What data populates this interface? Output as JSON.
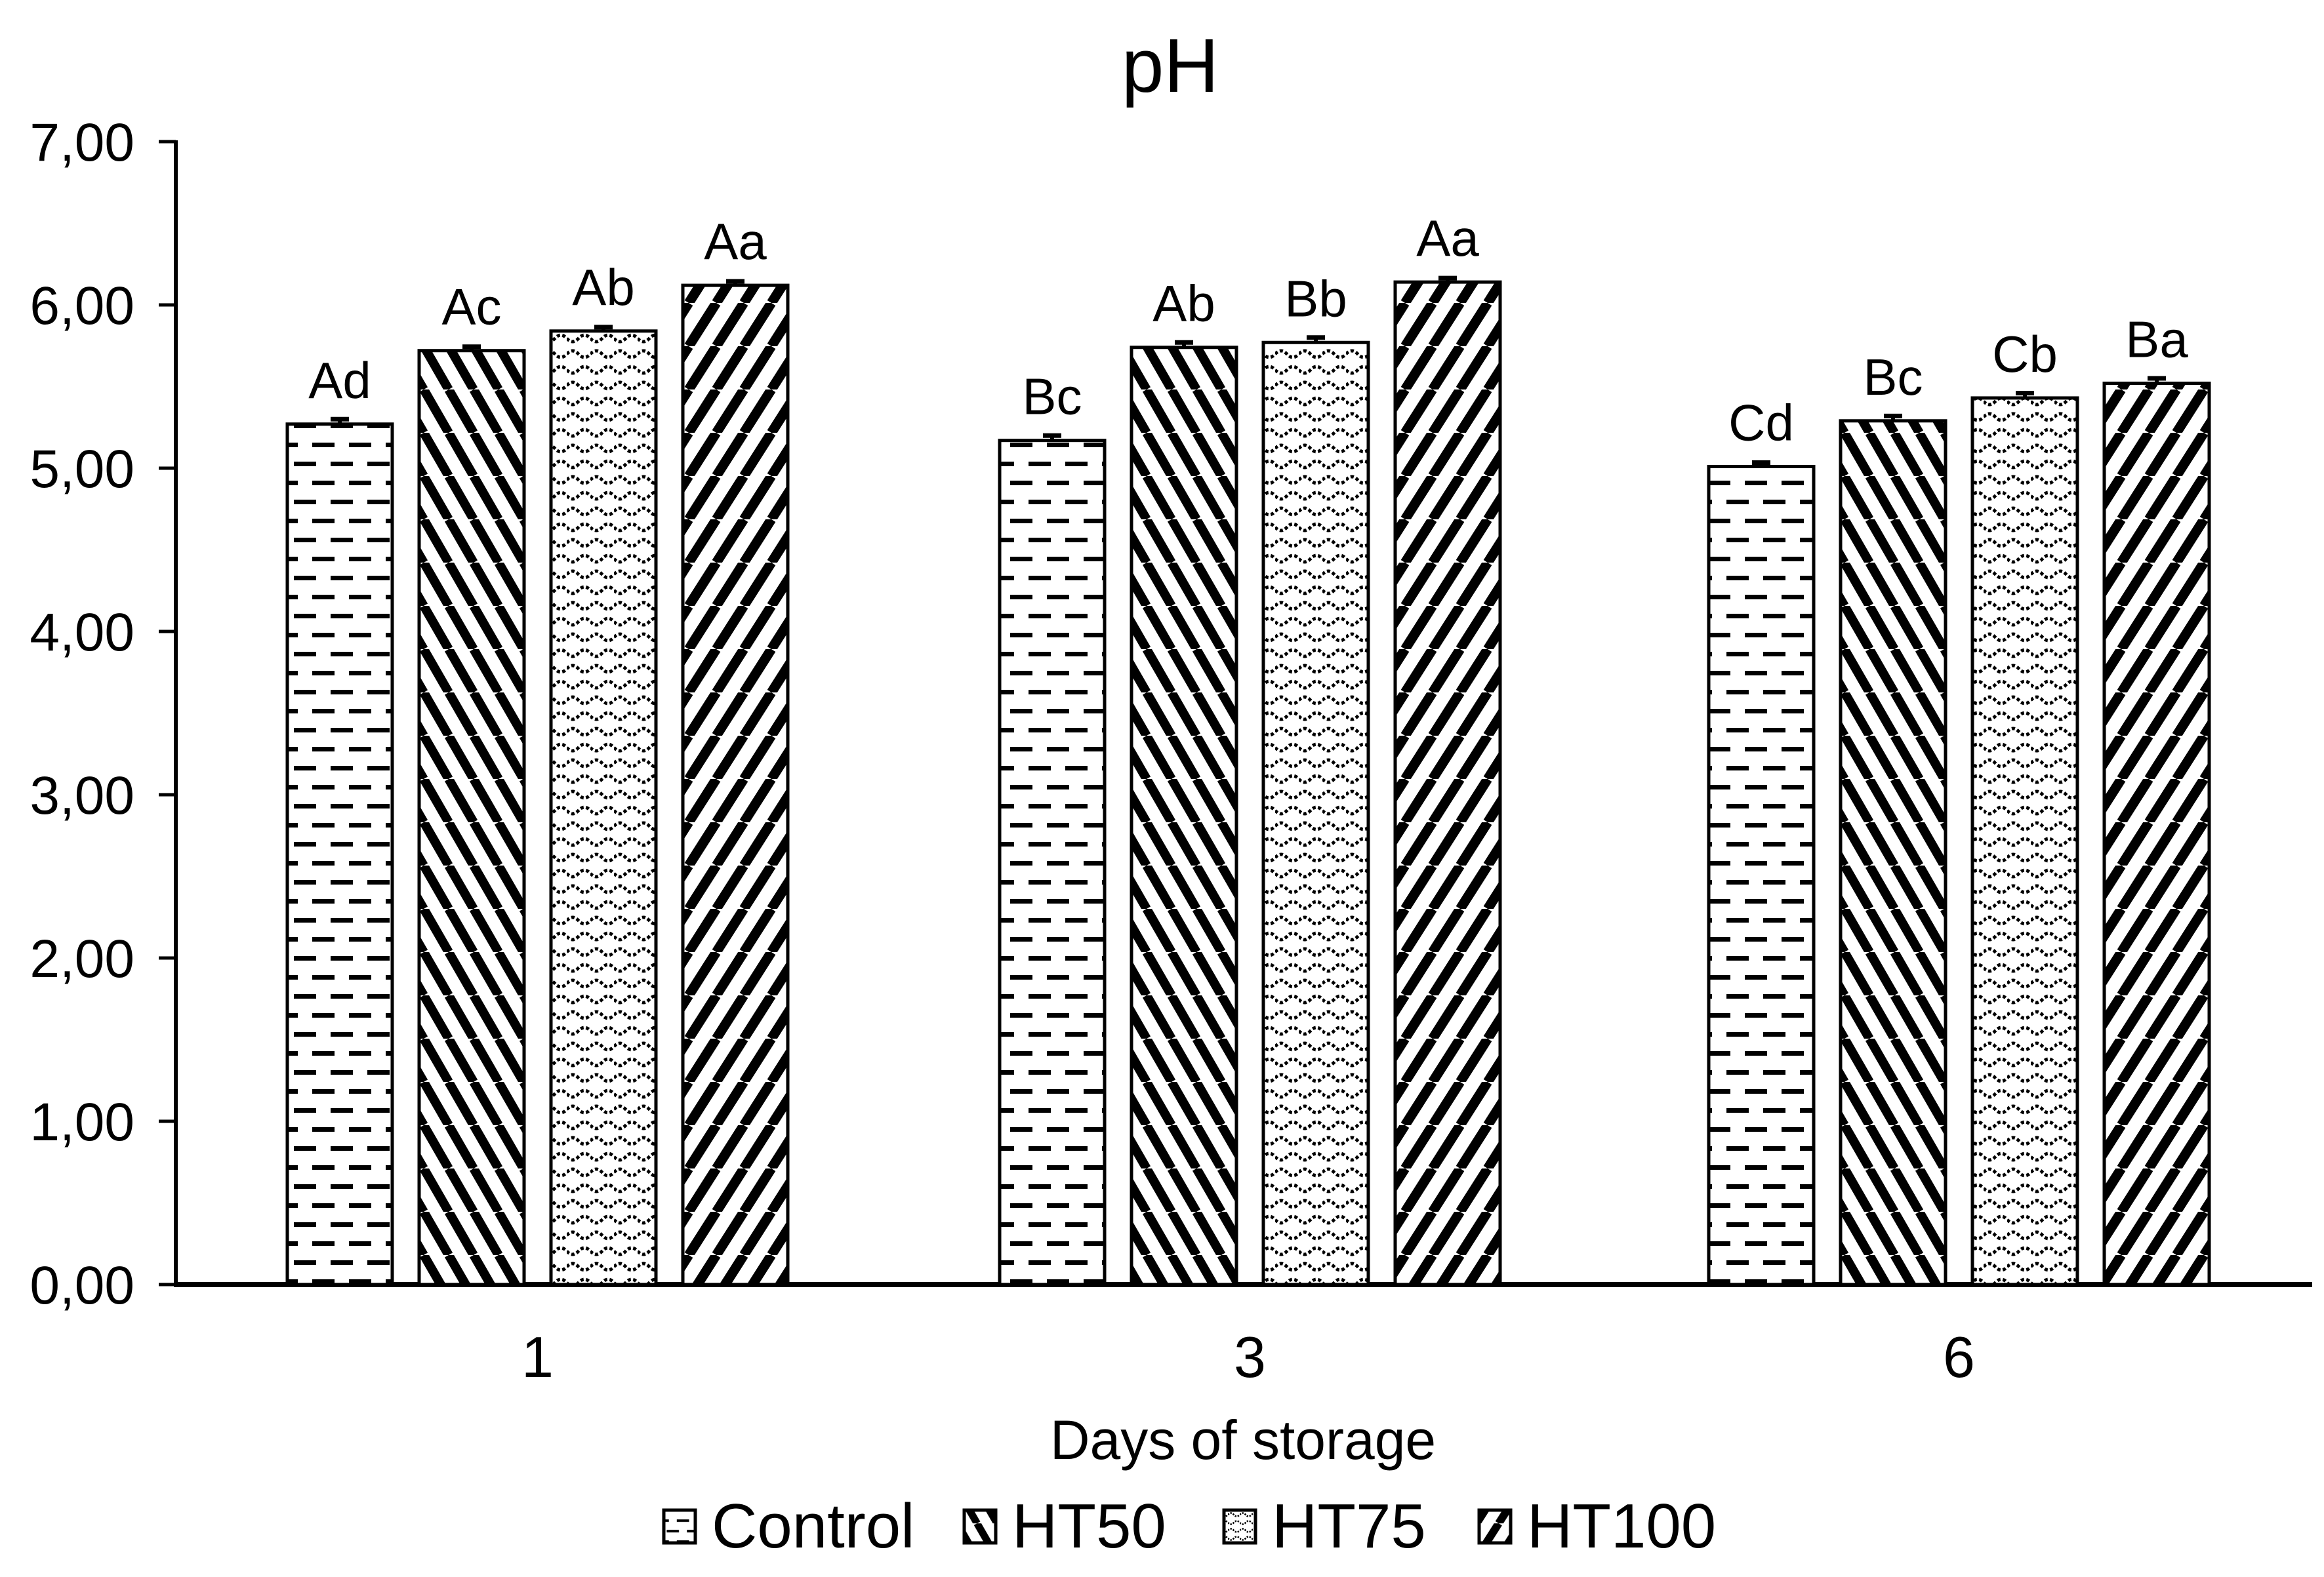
{
  "chart_data": {
    "type": "bar",
    "title": "pH",
    "xlabel": "Days of storage",
    "ylabel": "",
    "ylim": [
      0,
      7
    ],
    "y_tick_step": 1.0,
    "y_tick_labels": [
      "0,00",
      "1,00",
      "2,00",
      "3,00",
      "4,00",
      "5,00",
      "6,00",
      "7,00"
    ],
    "decimal_separator": ",",
    "grid": false,
    "legend_position": "bottom",
    "categories": [
      "1",
      "3",
      "6"
    ],
    "series": [
      {
        "name": "Control",
        "pattern": "dash",
        "values": [
          5.27,
          5.17,
          5.01
        ],
        "errors": [
          0.03,
          0.03,
          0.02
        ],
        "bar_labels": [
          "Ad",
          "Bc",
          "Cd"
        ]
      },
      {
        "name": "HT50",
        "pattern": "diag-back",
        "values": [
          5.72,
          5.74,
          5.29
        ],
        "errors": [
          0.02,
          0.03,
          0.03
        ],
        "bar_labels": [
          "Ac",
          "Ab",
          "Bc"
        ]
      },
      {
        "name": "HT75",
        "pattern": "wave",
        "values": [
          5.84,
          5.77,
          5.43
        ],
        "errors": [
          0.02,
          0.03,
          0.03
        ],
        "bar_labels": [
          "Ab",
          "Bb",
          "Cb"
        ]
      },
      {
        "name": "HT100",
        "pattern": "diag-fwd",
        "values": [
          6.12,
          6.14,
          5.52
        ],
        "errors": [
          0.02,
          0.02,
          0.03
        ],
        "bar_labels": [
          "Aa",
          "Aa",
          "Ba"
        ]
      }
    ],
    "colors": {
      "foreground": "#000000",
      "background": "#ffffff"
    }
  }
}
